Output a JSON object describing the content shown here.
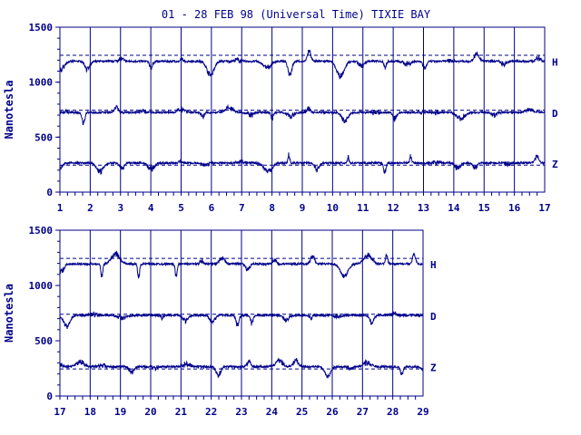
{
  "chart_data": {
    "type": "line",
    "title": "01 - 28 FEB 98 (Universal Time) TIXIE BAY",
    "ylabel": "Nanotesla",
    "panels": [
      {
        "x_ticks": [
          "1",
          "2",
          "3",
          "4",
          "5",
          "6",
          "7",
          "8",
          "9",
          "10",
          "11",
          "12",
          "13",
          "14",
          "15",
          "16",
          "17"
        ],
        "xlim": [
          1,
          17
        ],
        "ylim": [
          0,
          1500
        ],
        "y_ticks": [
          "0",
          "500",
          "1000",
          "1500"
        ],
        "series": [
          {
            "name": "H",
            "baseline": 1190,
            "reference": 1245
          },
          {
            "name": "D",
            "baseline": 725,
            "reference": 745
          },
          {
            "name": "Z",
            "baseline": 265,
            "reference": 245
          }
        ]
      },
      {
        "x_ticks": [
          "17",
          "18",
          "19",
          "20",
          "21",
          "22",
          "23",
          "24",
          "25",
          "26",
          "27",
          "28",
          "29"
        ],
        "xlim": [
          17,
          29
        ],
        "ylim": [
          0,
          1500
        ],
        "y_ticks": [
          "0",
          "500",
          "1000",
          "1500"
        ],
        "series": [
          {
            "name": "H",
            "baseline": 1195,
            "reference": 1245
          },
          {
            "name": "D",
            "baseline": 730,
            "reference": 740
          },
          {
            "name": "Z",
            "baseline": 265,
            "reference": 245
          }
        ]
      }
    ],
    "grid": true,
    "line_color": "#00008b"
  }
}
